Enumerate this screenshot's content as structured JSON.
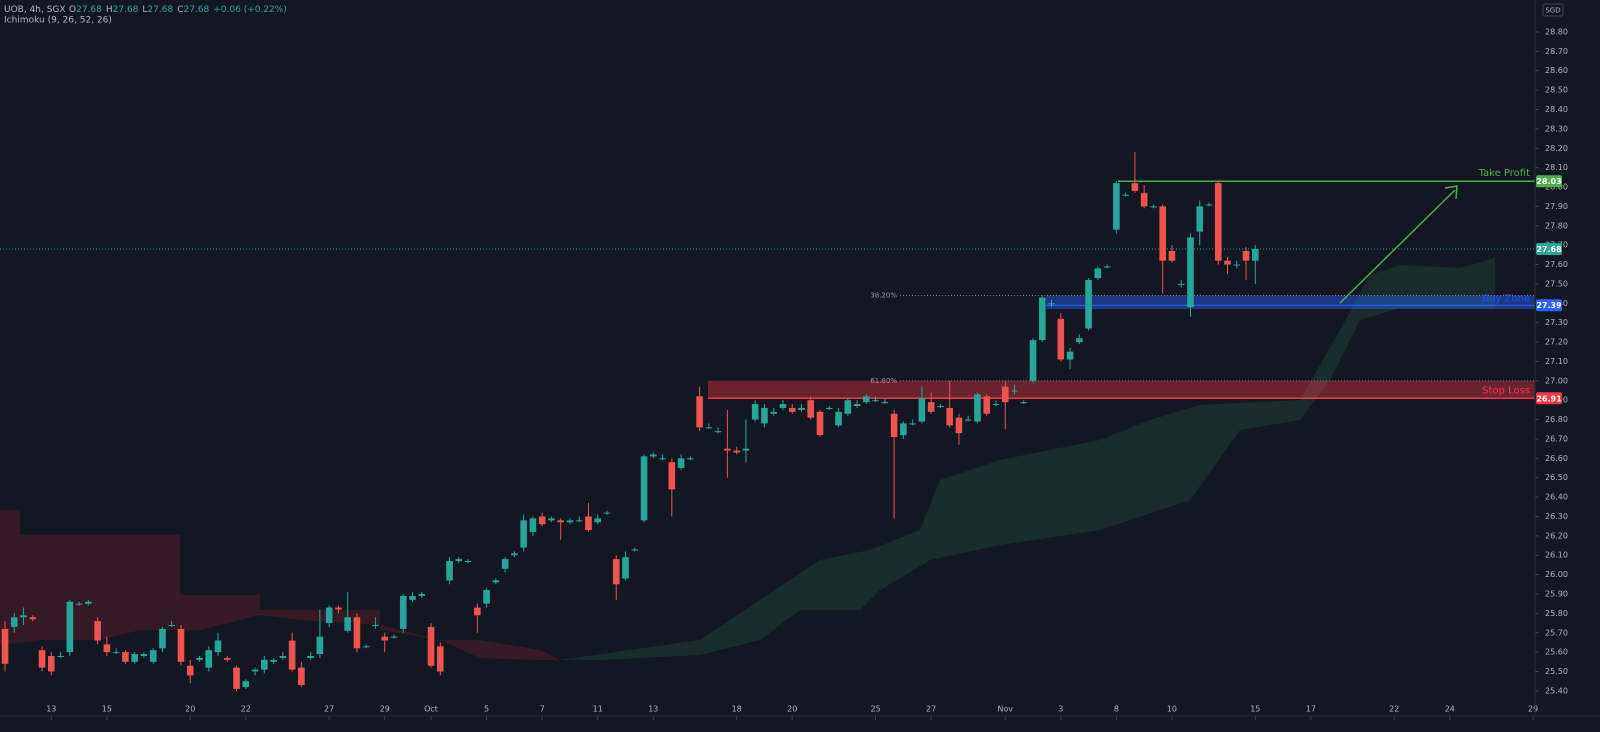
{
  "chart_data": {
    "type": "candlestick",
    "header": {
      "symbol": "UOB, 4h, SGX",
      "ohlc": [
        {
          "label": "O",
          "value": 27.68
        },
        {
          "label": "H",
          "value": 27.68
        },
        {
          "label": "L",
          "value": 27.68
        },
        {
          "label": "C",
          "value": 27.68
        }
      ],
      "change": "+0.06 (+0.22%)",
      "indicator": "Ichimoku (9, 26, 52, 26)"
    },
    "currency": "SGD",
    "up_color": "#26a69a",
    "down_color": "#ef5350",
    "xlim": [
      -0.54,
      165.2
    ],
    "xticks": [
      {
        "value": 5,
        "label": "13"
      },
      {
        "value": 11,
        "label": "15"
      },
      {
        "value": 20,
        "label": "20"
      },
      {
        "value": 26,
        "label": "22"
      },
      {
        "value": 35,
        "label": "27"
      },
      {
        "value": 41,
        "label": "29"
      },
      {
        "value": 46,
        "label": "Oct"
      },
      {
        "value": 52,
        "label": "5"
      },
      {
        "value": 58,
        "label": "7"
      },
      {
        "value": 64,
        "label": "11"
      },
      {
        "value": 70,
        "label": "13"
      },
      {
        "value": 79,
        "label": "18"
      },
      {
        "value": 85,
        "label": "20"
      },
      {
        "value": 94,
        "label": "25"
      },
      {
        "value": 100,
        "label": "27"
      },
      {
        "value": 108,
        "label": "Nov"
      },
      {
        "value": 114,
        "label": "3"
      },
      {
        "value": 120,
        "label": "8"
      },
      {
        "value": 126,
        "label": "10"
      },
      {
        "value": 135,
        "label": "15"
      },
      {
        "value": 141,
        "label": "17"
      },
      {
        "value": 150,
        "label": "22"
      },
      {
        "value": 156,
        "label": "24"
      },
      {
        "value": 165,
        "label": "29"
      }
    ],
    "ylim": [
      25.353,
      28.965
    ],
    "yticks": [
      {
        "value": 28.8,
        "label": "28.80"
      },
      {
        "value": 28.7,
        "label": "28.70"
      },
      {
        "value": 28.6,
        "label": "28.60"
      },
      {
        "value": 28.5,
        "label": "28.50"
      },
      {
        "value": 28.4,
        "label": "28.40"
      },
      {
        "value": 28.3,
        "label": "28.30"
      },
      {
        "value": 28.2,
        "label": "28.20"
      },
      {
        "value": 28.1,
        "label": "28.10"
      },
      {
        "value": 28.0,
        "label": "28.00"
      },
      {
        "value": 27.9,
        "label": "27.90"
      },
      {
        "value": 27.8,
        "label": "27.80"
      },
      {
        "value": 27.7,
        "label": "27.70"
      },
      {
        "value": 27.6,
        "label": "27.60"
      },
      {
        "value": 27.5,
        "label": "27.50"
      },
      {
        "value": 27.4,
        "label": "27.40"
      },
      {
        "value": 27.3,
        "label": "27.30"
      },
      {
        "value": 27.2,
        "label": "27.20"
      },
      {
        "value": 27.1,
        "label": "27.10"
      },
      {
        "value": 27.0,
        "label": "27.00"
      },
      {
        "value": 26.9,
        "label": "26.90"
      },
      {
        "value": 26.8,
        "label": "26.80"
      },
      {
        "value": 26.7,
        "label": "26.70"
      },
      {
        "value": 26.6,
        "label": "26.60"
      },
      {
        "value": 26.5,
        "label": "26.50"
      },
      {
        "value": 26.4,
        "label": "26.40"
      },
      {
        "value": 26.3,
        "label": "26.30"
      },
      {
        "value": 26.2,
        "label": "26.20"
      },
      {
        "value": 26.1,
        "label": "26.10"
      },
      {
        "value": 26.0,
        "label": "26.00"
      },
      {
        "value": 25.9,
        "label": "25.90"
      },
      {
        "value": 25.8,
        "label": "25.80"
      },
      {
        "value": 25.7,
        "label": "25.70"
      },
      {
        "value": 25.6,
        "label": "25.60"
      },
      {
        "value": 25.5,
        "label": "25.50"
      },
      {
        "value": 25.4,
        "label": "25.40"
      }
    ],
    "last_price": 27.68,
    "take_profit": {
      "label": "Take Profit",
      "value": 28.03,
      "color": "#4caf50"
    },
    "buy_zone": {
      "label": "Buy Zone",
      "value": 27.39,
      "low": 27.37,
      "high": 27.44,
      "color": "#2962ff"
    },
    "stop_loss": {
      "label": "Stop Loss",
      "value": 26.91,
      "low": 26.91,
      "high": 27.0,
      "color": "#f23645"
    },
    "fib_levels": [
      {
        "label": "38.20%",
        "value": 27.44
      },
      {
        "label": "61.80%",
        "value": 27.0
      }
    ],
    "candles": [
      {
        "open": 25.72,
        "high": 25.76,
        "low": 25.5,
        "close": 25.54
      },
      {
        "open": 25.73,
        "high": 25.8,
        "low": 25.7,
        "close": 25.78
      },
      {
        "open": 25.78,
        "high": 25.83,
        "low": 25.74,
        "close": 25.79
      },
      {
        "open": 25.78,
        "high": 25.79,
        "low": 25.76,
        "close": 25.77
      },
      {
        "open": 25.61,
        "high": 25.63,
        "low": 25.5,
        "close": 25.52
      },
      {
        "open": 25.58,
        "high": 25.6,
        "low": 25.48,
        "close": 25.5
      },
      {
        "open": 25.58,
        "high": 25.6,
        "low": 25.57,
        "close": 25.58
      },
      {
        "open": 25.6,
        "high": 25.87,
        "low": 25.58,
        "close": 25.86
      },
      {
        "open": 25.85,
        "high": 25.86,
        "low": 25.84,
        "close": 25.85
      },
      {
        "open": 25.85,
        "high": 25.87,
        "low": 25.84,
        "close": 25.86
      },
      {
        "open": 25.76,
        "high": 25.78,
        "low": 25.64,
        "close": 25.66
      },
      {
        "open": 25.64,
        "high": 25.68,
        "low": 25.58,
        "close": 25.6
      },
      {
        "open": 25.6,
        "high": 25.62,
        "low": 25.59,
        "close": 25.6
      },
      {
        "open": 25.6,
        "high": 25.61,
        "low": 25.54,
        "close": 25.55
      },
      {
        "open": 25.55,
        "high": 25.6,
        "low": 25.54,
        "close": 25.59
      },
      {
        "open": 25.58,
        "high": 25.6,
        "low": 25.57,
        "close": 25.59
      },
      {
        "open": 25.55,
        "high": 25.62,
        "low": 25.54,
        "close": 25.61
      },
      {
        "open": 25.62,
        "high": 25.73,
        "low": 25.6,
        "close": 25.72
      },
      {
        "open": 25.74,
        "high": 25.76,
        "low": 25.73,
        "close": 25.74
      },
      {
        "open": 25.72,
        "high": 25.74,
        "low": 25.53,
        "close": 25.55
      },
      {
        "open": 25.53,
        "high": 25.56,
        "low": 25.44,
        "close": 25.48
      },
      {
        "open": 25.56,
        "high": 25.58,
        "low": 25.55,
        "close": 25.57
      },
      {
        "open": 25.52,
        "high": 25.63,
        "low": 25.5,
        "close": 25.61
      },
      {
        "open": 25.6,
        "high": 25.7,
        "low": 25.58,
        "close": 25.66
      },
      {
        "open": 25.57,
        "high": 25.58,
        "low": 25.55,
        "close": 25.56
      },
      {
        "open": 25.52,
        "high": 25.53,
        "low": 25.4,
        "close": 25.41
      },
      {
        "open": 25.42,
        "high": 25.46,
        "low": 25.41,
        "close": 25.45
      },
      {
        "open": 25.5,
        "high": 25.52,
        "low": 25.48,
        "close": 25.51
      },
      {
        "open": 25.51,
        "high": 25.58,
        "low": 25.49,
        "close": 25.56
      },
      {
        "open": 25.55,
        "high": 25.57,
        "low": 25.54,
        "close": 25.56
      },
      {
        "open": 25.57,
        "high": 25.6,
        "low": 25.56,
        "close": 25.58
      },
      {
        "open": 25.66,
        "high": 25.7,
        "low": 25.5,
        "close": 25.51
      },
      {
        "open": 25.52,
        "high": 25.55,
        "low": 25.42,
        "close": 25.43
      },
      {
        "open": 25.57,
        "high": 25.6,
        "low": 25.56,
        "close": 25.58
      },
      {
        "open": 25.59,
        "high": 25.82,
        "low": 25.57,
        "close": 25.68
      },
      {
        "open": 25.75,
        "high": 25.84,
        "low": 25.73,
        "close": 25.83
      },
      {
        "open": 25.83,
        "high": 25.84,
        "low": 25.8,
        "close": 25.82
      },
      {
        "open": 25.71,
        "high": 25.91,
        "low": 25.7,
        "close": 25.78
      },
      {
        "open": 25.78,
        "high": 25.8,
        "low": 25.6,
        "close": 25.62
      },
      {
        "open": 25.63,
        "high": 25.64,
        "low": 25.62,
        "close": 25.63
      },
      {
        "open": 25.74,
        "high": 25.78,
        "low": 25.72,
        "close": 25.74
      },
      {
        "open": 25.68,
        "high": 25.7,
        "low": 25.6,
        "close": 25.66
      },
      {
        "open": 25.68,
        "high": 25.69,
        "low": 25.67,
        "close": 25.68
      },
      {
        "open": 25.72,
        "high": 25.9,
        "low": 25.7,
        "close": 25.89
      },
      {
        "open": 25.87,
        "high": 25.91,
        "low": 25.86,
        "close": 25.89
      },
      {
        "open": 25.89,
        "high": 25.91,
        "low": 25.88,
        "close": 25.9
      },
      {
        "open": 25.73,
        "high": 25.75,
        "low": 25.52,
        "close": 25.53
      },
      {
        "open": 25.63,
        "high": 25.65,
        "low": 25.48,
        "close": 25.5
      },
      {
        "open": 25.97,
        "high": 26.09,
        "low": 25.95,
        "close": 26.07
      },
      {
        "open": 26.07,
        "high": 26.09,
        "low": 26.06,
        "close": 26.08
      },
      {
        "open": 26.07,
        "high": 26.08,
        "low": 26.06,
        "close": 26.07
      },
      {
        "open": 25.83,
        "high": 25.85,
        "low": 25.7,
        "close": 25.79
      },
      {
        "open": 25.85,
        "high": 25.93,
        "low": 25.83,
        "close": 25.92
      },
      {
        "open": 25.96,
        "high": 25.98,
        "low": 25.95,
        "close": 25.97
      },
      {
        "open": 26.03,
        "high": 26.09,
        "low": 26.01,
        "close": 26.08
      },
      {
        "open": 26.1,
        "high": 26.12,
        "low": 26.09,
        "close": 26.11
      },
      {
        "open": 26.14,
        "high": 26.31,
        "low": 26.12,
        "close": 26.28
      },
      {
        "open": 26.22,
        "high": 26.3,
        "low": 26.2,
        "close": 26.29
      },
      {
        "open": 26.3,
        "high": 26.32,
        "low": 26.25,
        "close": 26.26
      },
      {
        "open": 26.28,
        "high": 26.3,
        "low": 26.27,
        "close": 26.29
      },
      {
        "open": 26.28,
        "high": 26.29,
        "low": 26.18,
        "close": 26.27
      },
      {
        "open": 26.27,
        "high": 26.29,
        "low": 26.26,
        "close": 26.28
      },
      {
        "open": 26.28,
        "high": 26.3,
        "low": 26.27,
        "close": 26.28
      },
      {
        "open": 26.3,
        "high": 26.37,
        "low": 26.22,
        "close": 26.23
      },
      {
        "open": 26.27,
        "high": 26.31,
        "low": 26.26,
        "close": 26.29
      },
      {
        "open": 26.32,
        "high": 26.33,
        "low": 26.31,
        "close": 26.32
      },
      {
        "open": 26.08,
        "high": 26.1,
        "low": 25.87,
        "close": 25.95
      },
      {
        "open": 25.98,
        "high": 26.12,
        "low": 25.97,
        "close": 26.09
      },
      {
        "open": 26.13,
        "high": 26.14,
        "low": 26.12,
        "close": 26.13
      },
      {
        "open": 26.28,
        "high": 26.62,
        "low": 26.27,
        "close": 26.61
      },
      {
        "open": 26.61,
        "high": 26.63,
        "low": 26.6,
        "close": 26.62
      },
      {
        "open": 26.6,
        "high": 26.62,
        "low": 26.59,
        "close": 26.6
      },
      {
        "open": 26.58,
        "high": 26.6,
        "low": 26.3,
        "close": 26.44
      },
      {
        "open": 26.55,
        "high": 26.62,
        "low": 26.54,
        "close": 26.6
      },
      {
        "open": 26.6,
        "high": 26.61,
        "low": 26.59,
        "close": 26.6
      },
      {
        "open": 26.92,
        "high": 26.97,
        "low": 26.74,
        "close": 26.76
      },
      {
        "open": 26.76,
        "high": 26.78,
        "low": 26.75,
        "close": 26.76
      },
      {
        "open": 26.74,
        "high": 26.76,
        "low": 26.73,
        "close": 26.74
      },
      {
        "open": 26.65,
        "high": 26.85,
        "low": 26.5,
        "close": 26.64
      },
      {
        "open": 26.64,
        "high": 26.66,
        "low": 26.62,
        "close": 26.63
      },
      {
        "open": 26.64,
        "high": 26.8,
        "low": 26.58,
        "close": 26.65
      },
      {
        "open": 26.8,
        "high": 26.9,
        "low": 26.79,
        "close": 26.88
      },
      {
        "open": 26.78,
        "high": 26.88,
        "low": 26.76,
        "close": 26.86
      },
      {
        "open": 26.83,
        "high": 26.86,
        "low": 26.82,
        "close": 26.84
      },
      {
        "open": 26.86,
        "high": 26.9,
        "low": 26.85,
        "close": 26.88
      },
      {
        "open": 26.86,
        "high": 26.88,
        "low": 26.83,
        "close": 26.84
      },
      {
        "open": 26.85,
        "high": 26.88,
        "low": 26.84,
        "close": 26.86
      },
      {
        "open": 26.9,
        "high": 26.92,
        "low": 26.8,
        "close": 26.81
      },
      {
        "open": 26.84,
        "high": 26.85,
        "low": 26.71,
        "close": 26.72
      },
      {
        "open": 26.86,
        "high": 26.87,
        "low": 26.85,
        "close": 26.86
      },
      {
        "open": 26.77,
        "high": 26.86,
        "low": 26.76,
        "close": 26.84
      },
      {
        "open": 26.83,
        "high": 26.91,
        "low": 26.82,
        "close": 26.9
      },
      {
        "open": 26.87,
        "high": 26.9,
        "low": 26.86,
        "close": 26.88
      },
      {
        "open": 26.89,
        "high": 26.93,
        "low": 26.88,
        "close": 26.92
      },
      {
        "open": 26.9,
        "high": 26.92,
        "low": 26.89,
        "close": 26.9
      },
      {
        "open": 26.89,
        "high": 26.91,
        "low": 26.88,
        "close": 26.89
      },
      {
        "open": 26.83,
        "high": 26.85,
        "low": 26.29,
        "close": 26.71
      },
      {
        "open": 26.72,
        "high": 26.79,
        "low": 26.7,
        "close": 26.78
      },
      {
        "open": 26.78,
        "high": 26.8,
        "low": 26.77,
        "close": 26.78
      },
      {
        "open": 26.79,
        "high": 26.97,
        "low": 26.78,
        "close": 26.91
      },
      {
        "open": 26.89,
        "high": 26.94,
        "low": 26.83,
        "close": 26.84
      },
      {
        "open": 26.87,
        "high": 26.88,
        "low": 26.86,
        "close": 26.87
      },
      {
        "open": 26.86,
        "high": 27.0,
        "low": 26.76,
        "close": 26.77
      },
      {
        "open": 26.81,
        "high": 26.83,
        "low": 26.67,
        "close": 26.73
      },
      {
        "open": 26.8,
        "high": 26.82,
        "low": 26.79,
        "close": 26.8
      },
      {
        "open": 26.79,
        "high": 26.94,
        "low": 26.78,
        "close": 26.93
      },
      {
        "open": 26.92,
        "high": 26.93,
        "low": 26.82,
        "close": 26.83
      },
      {
        "open": 26.88,
        "high": 26.9,
        "low": 26.87,
        "close": 26.88
      },
      {
        "open": 26.97,
        "high": 27.0,
        "low": 26.75,
        "close": 26.89
      },
      {
        "open": 26.95,
        "high": 26.98,
        "low": 26.93,
        "close": 26.95
      },
      {
        "open": 26.89,
        "high": 26.9,
        "low": 26.88,
        "close": 26.89
      },
      {
        "open": 27.0,
        "high": 27.22,
        "low": 26.99,
        "close": 27.21
      },
      {
        "open": 27.21,
        "high": 27.44,
        "low": 27.2,
        "close": 27.43
      },
      {
        "open": 27.4,
        "high": 27.42,
        "low": 27.38,
        "close": 27.4
      },
      {
        "open": 27.32,
        "high": 27.35,
        "low": 27.1,
        "close": 27.11
      },
      {
        "open": 27.11,
        "high": 27.17,
        "low": 27.06,
        "close": 27.15
      },
      {
        "open": 27.2,
        "high": 27.24,
        "low": 27.19,
        "close": 27.22
      },
      {
        "open": 27.27,
        "high": 27.53,
        "low": 27.26,
        "close": 27.52
      },
      {
        "open": 27.53,
        "high": 27.59,
        "low": 27.52,
        "close": 27.58
      },
      {
        "open": 27.59,
        "high": 27.6,
        "low": 27.58,
        "close": 27.59
      },
      {
        "open": 27.78,
        "high": 28.03,
        "low": 27.76,
        "close": 28.02
      },
      {
        "open": 27.96,
        "high": 27.97,
        "low": 27.95,
        "close": 27.96
      },
      {
        "open": 28.02,
        "high": 28.18,
        "low": 27.97,
        "close": 27.98
      },
      {
        "open": 27.97,
        "high": 28.01,
        "low": 27.89,
        "close": 27.9
      },
      {
        "open": 27.9,
        "high": 27.91,
        "low": 27.89,
        "close": 27.9
      },
      {
        "open": 27.9,
        "high": 27.91,
        "low": 27.45,
        "close": 27.62
      },
      {
        "open": 27.67,
        "high": 27.7,
        "low": 27.61,
        "close": 27.62
      },
      {
        "open": 27.5,
        "high": 27.52,
        "low": 27.48,
        "close": 27.5
      },
      {
        "open": 27.38,
        "high": 27.76,
        "low": 27.33,
        "close": 27.74
      },
      {
        "open": 27.77,
        "high": 27.93,
        "low": 27.7,
        "close": 27.9
      },
      {
        "open": 27.91,
        "high": 27.92,
        "low": 27.9,
        "close": 27.91
      },
      {
        "open": 28.02,
        "high": 28.03,
        "low": 27.6,
        "close": 27.62
      },
      {
        "open": 27.62,
        "high": 27.64,
        "low": 27.55,
        "close": 27.6
      },
      {
        "open": 27.6,
        "high": 27.62,
        "low": 27.58,
        "close": 27.6
      },
      {
        "open": 27.67,
        "high": 27.69,
        "low": 27.52,
        "close": 27.62
      },
      {
        "open": 27.62,
        "high": 27.7,
        "low": 27.5,
        "close": 27.68
      }
    ]
  }
}
